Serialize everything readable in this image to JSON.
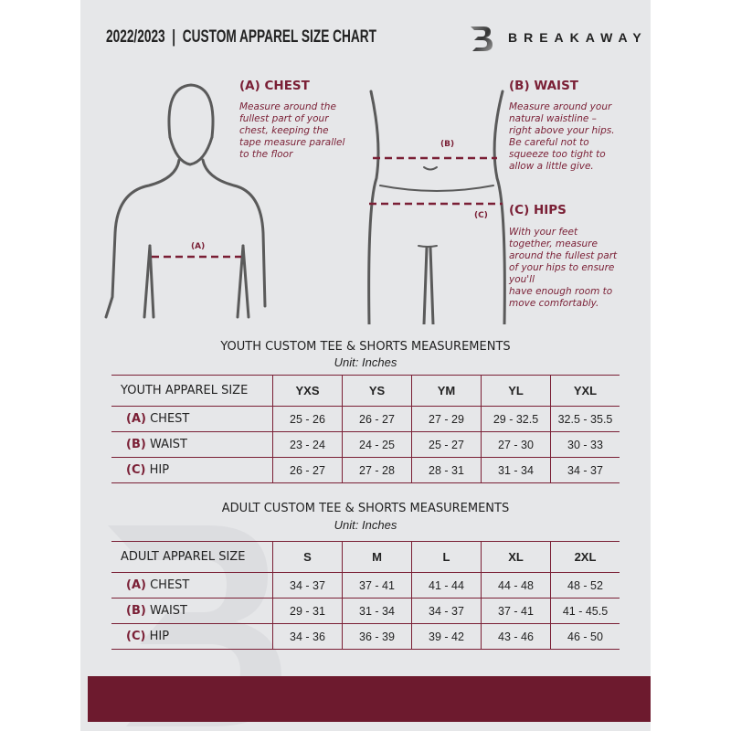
{
  "header": {
    "title": "2022/2023  |  CUSTOM APPAREL SIZE CHART",
    "brand": "BREAKAWAY"
  },
  "colors": {
    "accent": "#7a1f35",
    "sheet": "#e6e7e9",
    "footer": "#6d1a2e"
  },
  "sections": {
    "chest": {
      "title": "(A) CHEST",
      "text": "Measure around the\nfullest part of your\nchest, keeping the\ntape measure parallel\nto the floor",
      "marker": "(A)"
    },
    "waist": {
      "title": "(B) WAIST",
      "text": "Measure around your\nnatural waistline –\nright above your hips.\nBe careful not to\nsqueeze too tight to\nallow a little give.",
      "marker": "(B)"
    },
    "hips": {
      "title": "(C) HIPS",
      "text": "With your feet\ntogether, measure\naround the fullest part\nof your hips to ensure\nyou'll\nhave enough room to\nmove comfortably.",
      "marker": "(C)"
    }
  },
  "youth": {
    "title": "YOUTH CUSTOM TEE & SHORTS MEASUREMENTS",
    "unit": "Unit: Inches",
    "header": "YOUTH APPAREL SIZE",
    "sizes": [
      "YXS",
      "YS",
      "YM",
      "YL",
      "YXL"
    ],
    "rows": [
      {
        "code": "(A)",
        "name": "CHEST",
        "values": [
          "25 - 26",
          "26 - 27",
          "27 - 29",
          "29 - 32.5",
          "32.5 - 35.5"
        ]
      },
      {
        "code": "(B)",
        "name": "WAIST",
        "values": [
          "23 - 24",
          "24 - 25",
          "25 - 27",
          "27 - 30",
          "30 - 33"
        ]
      },
      {
        "code": "(C)",
        "name": "HIP",
        "values": [
          "26 - 27",
          "27 - 28",
          "28 - 31",
          "31 - 34",
          "34 - 37"
        ]
      }
    ]
  },
  "adult": {
    "title": "ADULT CUSTOM TEE & SHORTS MEASUREMENTS",
    "unit": "Unit: Inches",
    "header": "ADULT APPAREL SIZE",
    "sizes": [
      "S",
      "M",
      "L",
      "XL",
      "2XL"
    ],
    "rows": [
      {
        "code": "(A)",
        "name": "CHEST",
        "values": [
          "34 - 37",
          "37 - 41",
          "41 - 44",
          "44 - 48",
          "48 - 52"
        ]
      },
      {
        "code": "(B)",
        "name": "WAIST",
        "values": [
          "29 - 31",
          "31 - 34",
          "34 - 37",
          "37 - 41",
          "41 - 45.5"
        ]
      },
      {
        "code": "(C)",
        "name": "HIP",
        "values": [
          "34 - 36",
          "36 - 39",
          "39 - 42",
          "43 - 46",
          "46 - 50"
        ]
      }
    ]
  }
}
